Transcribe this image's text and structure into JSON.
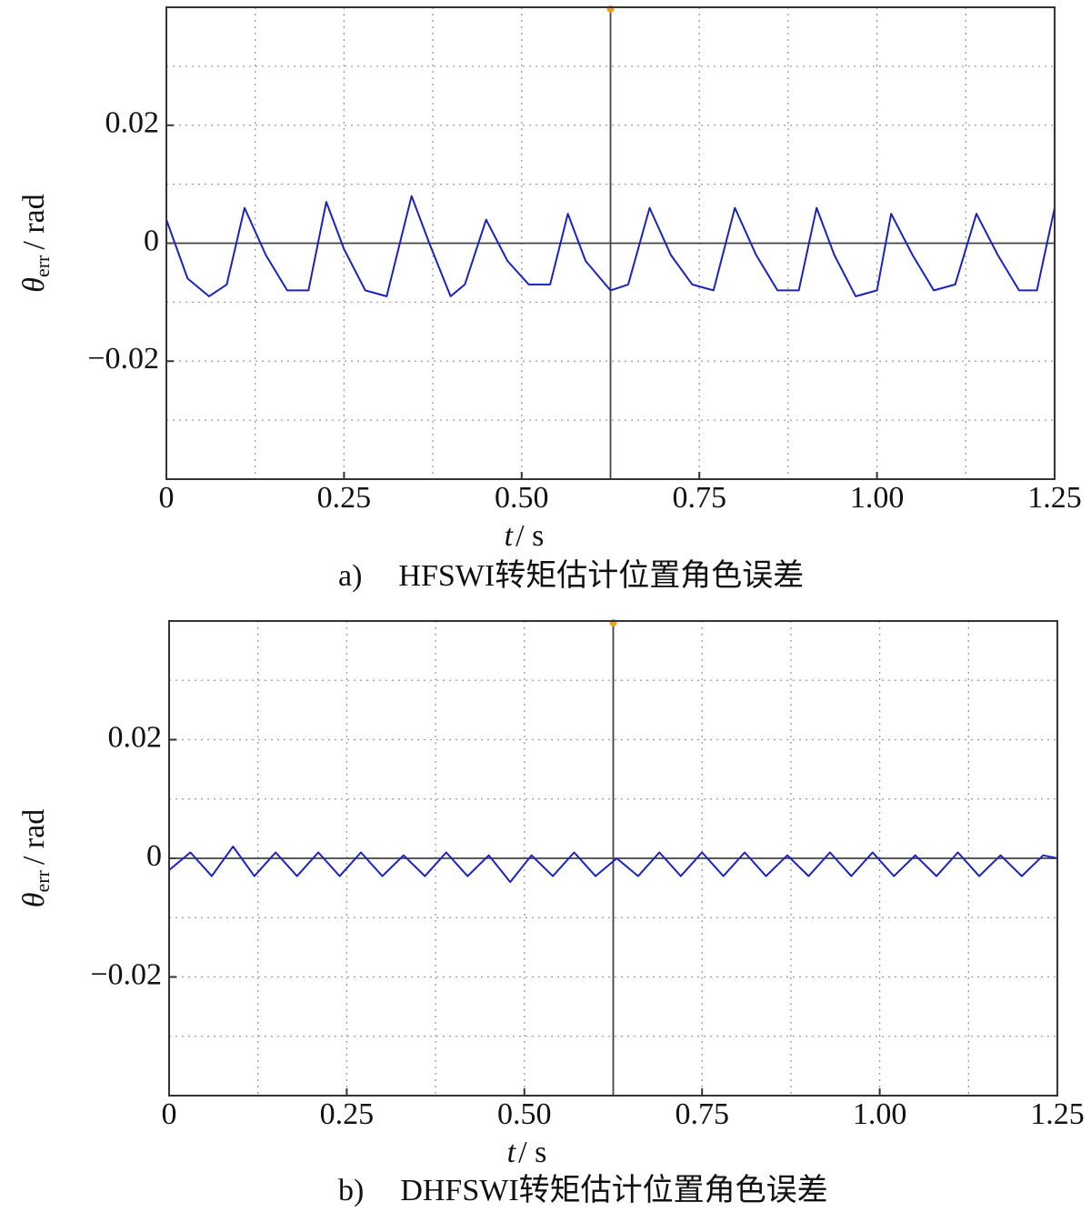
{
  "chart_data": [
    {
      "type": "line",
      "color": "#1a22c0",
      "ylabel": {
        "symbol": "θ",
        "subscript": "err",
        "unit": "/ rad"
      },
      "xlabel": {
        "symbol": "t",
        "unit": "/ s"
      },
      "caption": {
        "label": "a)",
        "text": "HFSWI转矩估计位置角色误差"
      },
      "xlim": [
        0,
        1.25
      ],
      "ylim": [
        -0.04,
        0.04
      ],
      "xticks": [
        0,
        0.25,
        {
          "value": 0.5,
          "label": "0.50"
        },
        0.75,
        {
          "value": 1,
          "label": "1.00"
        },
        1.25
      ],
      "yticks": [
        {
          "value": -0.02,
          "label": "−0.02"
        },
        0,
        0.02
      ],
      "grid": true,
      "x": [
        0,
        0.03,
        0.06,
        0.085,
        0.11,
        0.14,
        0.17,
        0.2,
        0.225,
        0.25,
        0.28,
        0.31,
        0.345,
        0.37,
        0.4,
        0.42,
        0.45,
        0.48,
        0.51,
        0.54,
        0.565,
        0.59,
        0.625,
        0.65,
        0.68,
        0.71,
        0.74,
        0.77,
        0.8,
        0.83,
        0.86,
        0.89,
        0.915,
        0.94,
        0.97,
        1.0,
        1.02,
        1.05,
        1.08,
        1.11,
        1.14,
        1.17,
        1.2,
        1.225,
        1.25
      ],
      "values": [
        0.004,
        -0.006,
        -0.009,
        -0.007,
        0.006,
        -0.002,
        -0.008,
        -0.008,
        0.007,
        -0.001,
        -0.008,
        -0.009,
        0.008,
        0,
        -0.009,
        -0.007,
        0.004,
        -0.003,
        -0.007,
        -0.007,
        0.005,
        -0.003,
        -0.008,
        -0.007,
        0.006,
        -0.002,
        -0.007,
        -0.008,
        0.006,
        -0.002,
        -0.008,
        -0.008,
        0.006,
        -0.002,
        -0.009,
        -0.008,
        0.005,
        -0.002,
        -0.008,
        -0.007,
        0.005,
        -0.002,
        -0.008,
        -0.008,
        0.006
      ]
    },
    {
      "type": "line",
      "color": "#1a22c0",
      "ylabel": {
        "symbol": "θ",
        "subscript": "err",
        "unit": "/ rad"
      },
      "xlabel": {
        "symbol": "t",
        "unit": "/ s"
      },
      "caption": {
        "label": "b)",
        "text": "DHFSWI转矩估计位置角色误差"
      },
      "xlim": [
        0,
        1.25
      ],
      "ylim": [
        -0.04,
        0.04
      ],
      "xticks": [
        0,
        0.25,
        {
          "value": 0.5,
          "label": "0.50"
        },
        0.75,
        {
          "value": 1,
          "label": "1.00"
        },
        1.25
      ],
      "yticks": [
        {
          "value": -0.02,
          "label": "−0.02"
        },
        0,
        0.02
      ],
      "grid": true,
      "x": [
        0,
        0.03,
        0.06,
        0.09,
        0.12,
        0.15,
        0.18,
        0.21,
        0.24,
        0.27,
        0.3,
        0.33,
        0.36,
        0.39,
        0.42,
        0.45,
        0.48,
        0.51,
        0.54,
        0.57,
        0.6,
        0.63,
        0.66,
        0.69,
        0.72,
        0.75,
        0.78,
        0.81,
        0.84,
        0.87,
        0.9,
        0.93,
        0.96,
        0.99,
        1.02,
        1.05,
        1.08,
        1.11,
        1.14,
        1.17,
        1.2,
        1.23,
        1.25
      ],
      "values": [
        -0.002,
        0.001,
        -0.003,
        0.002,
        -0.003,
        0.001,
        -0.003,
        0.001,
        -0.003,
        0.001,
        -0.003,
        0.0005,
        -0.003,
        0.001,
        -0.003,
        0.0005,
        -0.004,
        0.0005,
        -0.003,
        0.001,
        -0.003,
        0,
        -0.003,
        0.001,
        -0.003,
        0.001,
        -0.003,
        0.001,
        -0.003,
        0.0005,
        -0.003,
        0.001,
        -0.003,
        0.001,
        -0.003,
        0.0005,
        -0.003,
        0.001,
        -0.003,
        0.0005,
        -0.003,
        0.0005,
        0
      ]
    }
  ]
}
